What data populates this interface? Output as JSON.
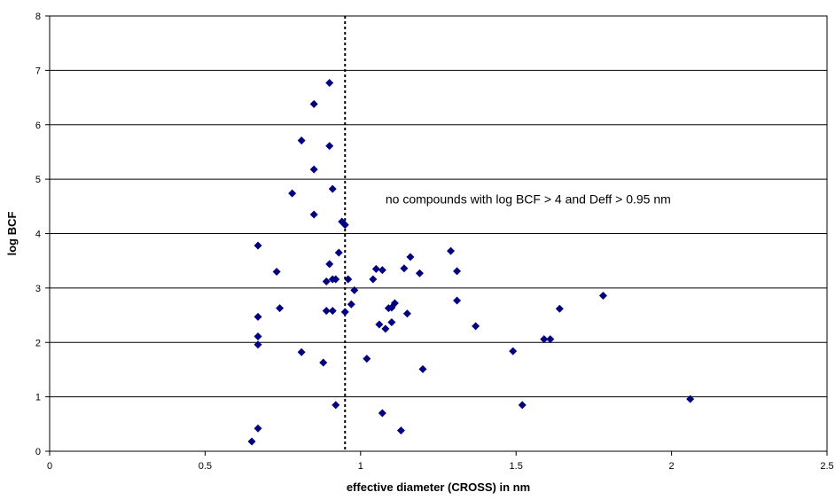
{
  "chart_data": {
    "type": "scatter",
    "xlabel": "effective diameter (CROSS) in nm",
    "ylabel": "log BCF",
    "xlim": [
      0,
      2.5
    ],
    "ylim": [
      0,
      8
    ],
    "x_ticks": [
      "0",
      "0.5",
      "1",
      "1.5",
      "2",
      "2.5"
    ],
    "y_ticks": [
      "0",
      "1",
      "2",
      "3",
      "4",
      "5",
      "6",
      "7",
      "8"
    ],
    "grid": "horizontal",
    "marker_color": "#000080",
    "reference_line": {
      "x": 0.95,
      "style": "dotted"
    },
    "annotation": "no compounds with log BCF > 4 and Deff > 0.95 nm",
    "points": [
      [
        0.65,
        0.18
      ],
      [
        0.67,
        0.42
      ],
      [
        0.67,
        1.96
      ],
      [
        0.67,
        2.11
      ],
      [
        0.67,
        2.47
      ],
      [
        0.67,
        3.78
      ],
      [
        0.73,
        3.3
      ],
      [
        0.74,
        2.63
      ],
      [
        0.78,
        4.74
      ],
      [
        0.81,
        5.71
      ],
      [
        0.81,
        1.82
      ],
      [
        0.85,
        6.38
      ],
      [
        0.85,
        5.18
      ],
      [
        0.85,
        4.35
      ],
      [
        0.88,
        1.63
      ],
      [
        0.89,
        2.58
      ],
      [
        0.89,
        3.12
      ],
      [
        0.9,
        3.44
      ],
      [
        0.9,
        6.77
      ],
      [
        0.9,
        5.61
      ],
      [
        0.91,
        4.82
      ],
      [
        0.91,
        3.16
      ],
      [
        0.91,
        2.58
      ],
      [
        0.92,
        3.16
      ],
      [
        0.92,
        0.85
      ],
      [
        0.93,
        3.65
      ],
      [
        0.94,
        4.22
      ],
      [
        0.95,
        4.16
      ],
      [
        0.95,
        2.56
      ],
      [
        0.96,
        3.16
      ],
      [
        0.97,
        2.7
      ],
      [
        0.98,
        2.96
      ],
      [
        1.02,
        1.7
      ],
      [
        1.04,
        3.16
      ],
      [
        1.05,
        3.35
      ],
      [
        1.06,
        2.33
      ],
      [
        1.07,
        3.33
      ],
      [
        1.07,
        0.7
      ],
      [
        1.08,
        2.25
      ],
      [
        1.09,
        2.63
      ],
      [
        1.1,
        2.37
      ],
      [
        1.1,
        2.64
      ],
      [
        1.11,
        2.72
      ],
      [
        1.13,
        0.38
      ],
      [
        1.14,
        3.36
      ],
      [
        1.15,
        2.53
      ],
      [
        1.16,
        3.57
      ],
      [
        1.19,
        3.27
      ],
      [
        1.2,
        1.51
      ],
      [
        1.29,
        3.68
      ],
      [
        1.31,
        3.31
      ],
      [
        1.31,
        2.77
      ],
      [
        1.37,
        2.3
      ],
      [
        1.49,
        1.84
      ],
      [
        1.52,
        0.85
      ],
      [
        1.59,
        2.06
      ],
      [
        1.61,
        2.06
      ],
      [
        1.64,
        2.62
      ],
      [
        1.78,
        2.86
      ],
      [
        2.06,
        0.96
      ]
    ]
  }
}
